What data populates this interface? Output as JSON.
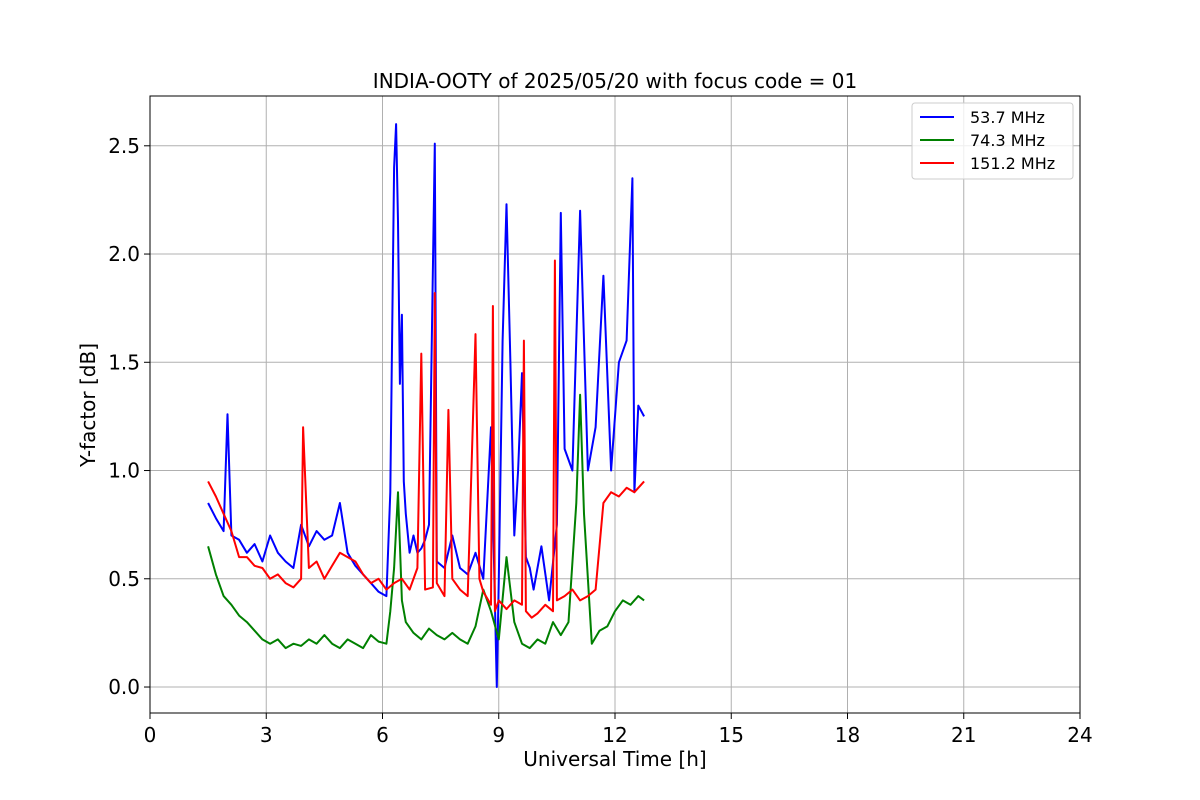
{
  "chart_data": {
    "type": "line",
    "title": "INDIA-OOTY of 2025/05/20 with focus code = 01",
    "xlabel": "Universal Time [h]",
    "ylabel": "Y-factor [dB]",
    "xlim": [
      0,
      24
    ],
    "ylim": [
      -0.12,
      2.73
    ],
    "xticks": [
      0,
      3,
      6,
      9,
      12,
      15,
      18,
      21,
      24
    ],
    "yticks": [
      0.0,
      0.5,
      1.0,
      1.5,
      2.0,
      2.5
    ],
    "xtick_labels": [
      "0",
      "3",
      "6",
      "9",
      "12",
      "15",
      "18",
      "21",
      "24"
    ],
    "ytick_labels": [
      "0.0",
      "0.5",
      "1.0",
      "1.5",
      "2.0",
      "2.5"
    ],
    "grid": true,
    "legend_position": "top-right",
    "series": [
      {
        "name": "53.7 MHz",
        "color": "#0000ff",
        "x": [
          1.5,
          1.7,
          1.9,
          2.0,
          2.1,
          2.3,
          2.5,
          2.7,
          2.9,
          3.1,
          3.3,
          3.5,
          3.7,
          3.9,
          4.1,
          4.3,
          4.5,
          4.7,
          4.9,
          5.1,
          5.3,
          5.5,
          5.7,
          5.9,
          6.1,
          6.2,
          6.3,
          6.35,
          6.4,
          6.45,
          6.5,
          6.55,
          6.6,
          6.7,
          6.8,
          6.9,
          7.0,
          7.1,
          7.2,
          7.35,
          7.4,
          7.6,
          7.8,
          8.0,
          8.2,
          8.4,
          8.6,
          8.8,
          8.95,
          9.0,
          9.1,
          9.2,
          9.3,
          9.4,
          9.5,
          9.6,
          9.7,
          9.8,
          9.9,
          10.1,
          10.3,
          10.5,
          10.6,
          10.7,
          10.9,
          11.1,
          11.2,
          11.3,
          11.5,
          11.7,
          11.9,
          12.1,
          12.3,
          12.45,
          12.5,
          12.6,
          12.75
        ],
        "y": [
          0.85,
          0.78,
          0.72,
          1.26,
          0.7,
          0.68,
          0.62,
          0.66,
          0.58,
          0.7,
          0.62,
          0.58,
          0.55,
          0.75,
          0.65,
          0.72,
          0.68,
          0.7,
          0.85,
          0.62,
          0.56,
          0.52,
          0.48,
          0.44,
          0.42,
          0.9,
          2.4,
          2.6,
          2.15,
          1.4,
          1.72,
          0.95,
          0.8,
          0.62,
          0.7,
          0.62,
          0.64,
          0.68,
          0.75,
          2.51,
          0.58,
          0.55,
          0.7,
          0.55,
          0.52,
          0.62,
          0.5,
          1.2,
          0.0,
          0.5,
          1.6,
          2.23,
          1.5,
          0.7,
          1.0,
          1.45,
          0.6,
          0.55,
          0.45,
          0.65,
          0.4,
          0.75,
          2.19,
          1.1,
          1.0,
          2.2,
          1.6,
          1.0,
          1.2,
          1.9,
          1.0,
          1.5,
          1.6,
          2.35,
          0.9,
          1.3,
          1.25
        ]
      },
      {
        "name": "74.3 MHz",
        "color": "#008000",
        "x": [
          1.5,
          1.7,
          1.9,
          2.1,
          2.3,
          2.5,
          2.7,
          2.9,
          3.1,
          3.3,
          3.5,
          3.7,
          3.9,
          4.1,
          4.3,
          4.5,
          4.7,
          4.9,
          5.1,
          5.3,
          5.5,
          5.7,
          5.9,
          6.1,
          6.2,
          6.3,
          6.4,
          6.5,
          6.6,
          6.8,
          7.0,
          7.2,
          7.4,
          7.6,
          7.8,
          8.0,
          8.2,
          8.4,
          8.6,
          8.8,
          9.0,
          9.2,
          9.4,
          9.6,
          9.8,
          10.0,
          10.2,
          10.4,
          10.6,
          10.8,
          11.0,
          11.1,
          11.2,
          11.4,
          11.6,
          11.8,
          12.0,
          12.2,
          12.4,
          12.6,
          12.75
        ],
        "y": [
          0.65,
          0.52,
          0.42,
          0.38,
          0.33,
          0.3,
          0.26,
          0.22,
          0.2,
          0.22,
          0.18,
          0.2,
          0.19,
          0.22,
          0.2,
          0.24,
          0.2,
          0.18,
          0.22,
          0.2,
          0.18,
          0.24,
          0.21,
          0.2,
          0.35,
          0.55,
          0.9,
          0.4,
          0.3,
          0.25,
          0.22,
          0.27,
          0.24,
          0.22,
          0.25,
          0.22,
          0.2,
          0.28,
          0.45,
          0.35,
          0.22,
          0.6,
          0.3,
          0.2,
          0.18,
          0.22,
          0.2,
          0.3,
          0.24,
          0.3,
          0.85,
          1.35,
          0.8,
          0.2,
          0.26,
          0.28,
          0.35,
          0.4,
          0.38,
          0.42,
          0.4
        ]
      },
      {
        "name": "151.2 MHz",
        "color": "#ff0000",
        "x": [
          1.5,
          1.7,
          1.9,
          2.1,
          2.3,
          2.5,
          2.7,
          2.9,
          3.1,
          3.3,
          3.5,
          3.7,
          3.9,
          3.95,
          4.1,
          4.3,
          4.5,
          4.7,
          4.9,
          5.1,
          5.3,
          5.5,
          5.7,
          5.9,
          6.1,
          6.3,
          6.5,
          6.7,
          6.9,
          7.0,
          7.1,
          7.3,
          7.35,
          7.4,
          7.6,
          7.7,
          7.8,
          8.0,
          8.2,
          8.4,
          8.5,
          8.6,
          8.8,
          8.85,
          8.9,
          9.0,
          9.2,
          9.4,
          9.6,
          9.65,
          9.7,
          9.85,
          10.0,
          10.2,
          10.4,
          10.45,
          10.5,
          10.7,
          10.9,
          11.1,
          11.3,
          11.5,
          11.7,
          11.9,
          12.1,
          12.3,
          12.5,
          12.75
        ],
        "y": [
          0.95,
          0.88,
          0.8,
          0.72,
          0.6,
          0.6,
          0.56,
          0.55,
          0.5,
          0.52,
          0.48,
          0.46,
          0.5,
          1.2,
          0.55,
          0.58,
          0.5,
          0.56,
          0.62,
          0.6,
          0.58,
          0.52,
          0.48,
          0.5,
          0.45,
          0.48,
          0.5,
          0.45,
          0.55,
          1.54,
          0.45,
          0.46,
          1.82,
          0.48,
          0.42,
          1.28,
          0.5,
          0.45,
          0.42,
          1.63,
          0.5,
          0.44,
          0.38,
          1.76,
          0.35,
          0.4,
          0.36,
          0.4,
          0.38,
          1.6,
          0.35,
          0.32,
          0.34,
          0.38,
          0.35,
          1.97,
          0.4,
          0.42,
          0.45,
          0.4,
          0.42,
          0.45,
          0.85,
          0.9,
          0.88,
          0.92,
          0.9,
          0.95
        ]
      }
    ]
  }
}
